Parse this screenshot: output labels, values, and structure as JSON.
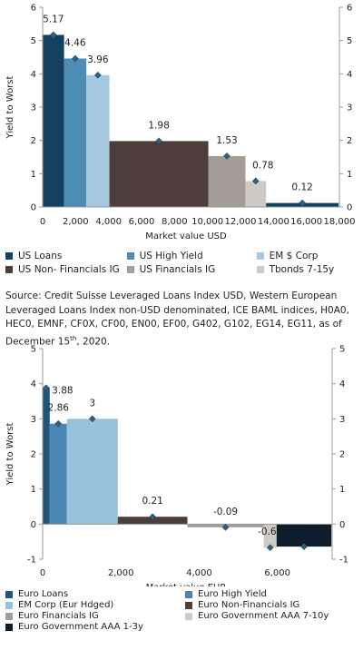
{
  "colors": {
    "us_loans": "#13415f",
    "us_high_yield": "#4d8cb5",
    "em_corp": "#a5c8de",
    "us_nonfin_ig": "#4d3e3a",
    "us_fin_ig": "#a39d95",
    "tbonds": "#cfcac3",
    "euro_loans": "#1d5679",
    "euro_hy": "#4a86b3",
    "euro_em_corp": "#99c0da",
    "euro_nonfin_ig": "#4d3e3a",
    "euro_fin_ig": "#a39d95",
    "euro_govt_7_10": "#cfcac3",
    "euro_govt_1_3": "#0d1d2b",
    "marker": "#2f6280"
  },
  "source_note": {
    "text": "Source: Credit Suisse Leveraged Loans Index USD, Western European Leveraged Loans Index non-USD denominated, ICE BAML indices, H0A0, HEC0, EMNF, CF0X, CF00, EN00, EF00, G402, G102, EG14, EG11, as of December 15",
    "sup": "th",
    "tail": ", 2020."
  },
  "chart_data": [
    {
      "type": "bar",
      "ylabel": "Yield to Worst",
      "xlabel": "Market value USD",
      "ylim": [
        0,
        6
      ],
      "xlim": [
        0,
        18000
      ],
      "y_ticks": [
        "0",
        "1",
        "2",
        "3",
        "4",
        "5",
        "6"
      ],
      "x_ticks": [
        {
          "value": 0,
          "label": "0"
        },
        {
          "value": 2000,
          "label": "2,000"
        },
        {
          "value": 4000,
          "label": "4,000"
        },
        {
          "value": 6000,
          "label": "6,000"
        },
        {
          "value": 8000,
          "label": "8,000"
        },
        {
          "value": 10000,
          "label": "10,000"
        },
        {
          "value": 12000,
          "label": "12,000"
        },
        {
          "value": 14000,
          "label": "14,000"
        },
        {
          "value": 16000,
          "label": "16,000"
        },
        {
          "value": 18000,
          "label": "18,000"
        }
      ],
      "secondary_y_axis": true,
      "series": [
        {
          "name": "US Loans",
          "x_start": 0,
          "x_end": 1300,
          "value": 5.17,
          "label": "5.17",
          "color_key": "us_loans"
        },
        {
          "name": "US High Yield",
          "x_start": 1300,
          "x_end": 2650,
          "value": 4.46,
          "label": "4.46",
          "color_key": "us_high_yield"
        },
        {
          "name": "EM $ Corp",
          "x_start": 2650,
          "x_end": 4050,
          "value": 3.96,
          "label": "3.96",
          "color_key": "em_corp"
        },
        {
          "name": "US Non- Financials IG",
          "x_start": 4050,
          "x_end": 10050,
          "value": 1.98,
          "label": "1.98",
          "color_key": "us_nonfin_ig"
        },
        {
          "name": "US Financials IG",
          "x_start": 10050,
          "x_end": 12300,
          "value": 1.53,
          "label": "1.53",
          "color_key": "us_fin_ig"
        },
        {
          "name": "Tbonds 7-15y",
          "x_start": 12300,
          "x_end": 13550,
          "value": 0.78,
          "label": "0.78",
          "color_key": "tbonds"
        },
        {
          "name": "",
          "x_start": 13550,
          "x_end": 17950,
          "value": 0.12,
          "label": "0.12",
          "color_key": "us_loans"
        }
      ],
      "legend": [
        {
          "label": "US Loans",
          "color_key": "us_loans"
        },
        {
          "label": "US High Yield",
          "color_key": "us_high_yield"
        },
        {
          "label": "EM $ Corp",
          "color_key": "em_corp"
        },
        {
          "label": "US Non- Financials IG",
          "color_key": "us_nonfin_ig"
        },
        {
          "label": "US Financials IG",
          "color_key": "us_fin_ig"
        },
        {
          "label": "Tbonds 7-15y",
          "color_key": "tbonds"
        }
      ]
    },
    {
      "type": "bar",
      "ylabel": "Yield to Worst",
      "xlabel": "Market value EUR",
      "ylim": [
        -1,
        5
      ],
      "xlim": [
        0,
        7400
      ],
      "y_ticks": [
        "-1",
        "0",
        "1",
        "2",
        "3",
        "4",
        "5"
      ],
      "x_ticks": [
        {
          "value": 0,
          "label": "0"
        },
        {
          "value": 2000,
          "label": "2,000"
        },
        {
          "value": 4000,
          "label": "4,000"
        },
        {
          "value": 6000,
          "label": "6,000"
        }
      ],
      "secondary_y_axis": true,
      "series": [
        {
          "name": "Euro Loans",
          "x_start": 0,
          "x_end": 180,
          "value": 3.88,
          "label": "3.88",
          "color_key": "euro_loans"
        },
        {
          "name": "Euro High Yield",
          "x_start": 180,
          "x_end": 620,
          "value": 2.86,
          "label": "2.86",
          "color_key": "euro_hy"
        },
        {
          "name": "EM Corp (Eur Hdged)",
          "x_start": 620,
          "x_end": 1920,
          "value": 3,
          "label": "3",
          "color_key": "euro_em_corp"
        },
        {
          "name": "Euro Non-Financials IG",
          "x_start": 1920,
          "x_end": 3700,
          "value": 0.21,
          "label": "0.21",
          "color_key": "euro_nonfin_ig"
        },
        {
          "name": "Euro Financials IG",
          "x_start": 3700,
          "x_end": 5650,
          "value": -0.09,
          "label": "-0.09",
          "color_key": "euro_fin_ig"
        },
        {
          "name": "Euro Government AAA 7-10y",
          "x_start": 5650,
          "x_end": 5980,
          "value": -0.67,
          "label": "-0.67",
          "color_key": "euro_govt_7_10"
        },
        {
          "name": "Euro Government AAA 1-3y",
          "x_start": 5980,
          "x_end": 7380,
          "value": -0.64,
          "label": "-0.64",
          "color_key": "euro_govt_1_3"
        }
      ],
      "legend": [
        {
          "label": "Euro Loans",
          "color_key": "euro_loans"
        },
        {
          "label": "Euro High Yield",
          "color_key": "euro_hy"
        },
        {
          "label": "EM Corp (Eur Hdged)",
          "color_key": "euro_em_corp"
        },
        {
          "label": "Euro Non-Financials IG",
          "color_key": "euro_nonfin_ig"
        },
        {
          "label": "Euro Financials IG",
          "color_key": "euro_fin_ig"
        },
        {
          "label": "Euro Government AAA 7-10y",
          "color_key": "euro_govt_7_10"
        },
        {
          "label": "Euro Government AAA 1-3y",
          "color_key": "euro_govt_1_3"
        }
      ]
    }
  ]
}
